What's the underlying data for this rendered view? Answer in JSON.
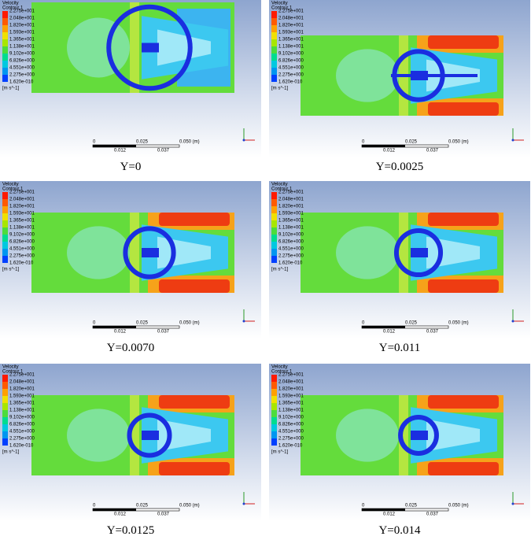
{
  "legend_title": "Velocity",
  "legend_subtitle": "Contour 1",
  "legend_levels": [
    "2.275e+001",
    "2.048e+001",
    "1.820e+001",
    "1.593e+001",
    "1.365e+001",
    "1.138e+001",
    "9.102e+000",
    "6.826e+000",
    "4.551e+000",
    "2.275e+000",
    "1.620e-010"
  ],
  "unit": "[m s^-1]",
  "scale_labels_top": [
    "0",
    "0.025",
    "0.050 (m)"
  ],
  "scale_labels_bottom": [
    "0.012",
    "0.037"
  ],
  "panels": [
    {
      "caption": "Y=0"
    },
    {
      "caption": "Y=0.0025"
    },
    {
      "caption": "Y=0.0070"
    },
    {
      "caption": "Y=0.011"
    },
    {
      "caption": "Y=0.0125"
    },
    {
      "caption": "Y=0.014"
    }
  ]
}
